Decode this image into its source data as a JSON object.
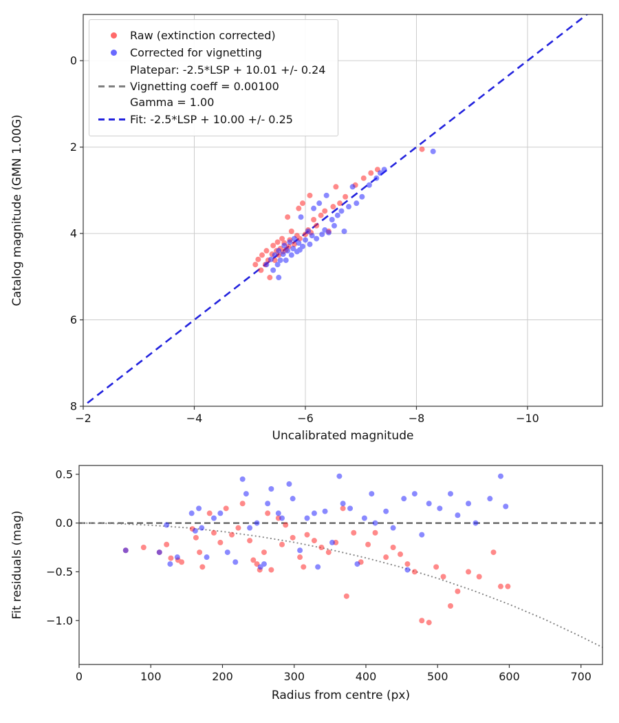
{
  "figure": {
    "background": "#ffffff"
  },
  "chart_data": [
    {
      "name": "calibration",
      "type": "scatter",
      "title": "",
      "xlabel": "Uncalibrated magnitude",
      "ylabel": "Catalog magnitude (GMN 1.00G)",
      "xlim": [
        -2,
        -11.35
      ],
      "ylim": [
        8,
        -1.07
      ],
      "xticks": [
        -2,
        -4,
        -6,
        -8,
        -10
      ],
      "yticks": [
        0,
        2,
        4,
        6,
        8
      ],
      "grid": true,
      "legend": {
        "position": "upper left",
        "entries": [
          {
            "marker": "dot",
            "color": "#ff2a2a",
            "label": "Raw (extinction corrected)"
          },
          {
            "marker": "dot",
            "color": "#2a2aff",
            "label": "Corrected for vignetting"
          },
          {
            "marker": "dash",
            "color": "#7f7f7f",
            "label": "Platepar: -2.5*LSP + 10.01 +/- 0.24\nVignetting coeff = 0.00100\nGamma = 1.00"
          },
          {
            "marker": "dash",
            "color": "#2222dd",
            "label": "Fit: -2.5*LSP + 10.00 +/- 0.25"
          }
        ]
      },
      "series": [
        {
          "id": "fit-line",
          "name": "Fit: -2.5*LSP + 10.00 +/- 0.25",
          "type": "line",
          "color": "#2222dd",
          "dash": "11,7",
          "width": 2.6,
          "points": [
            [
              -1.9,
              8.1
            ],
            [
              -11.35,
              -1.35
            ]
          ]
        },
        {
          "id": "raw-points",
          "name": "Raw (extinction corrected)",
          "type": "scatter",
          "color": "#ff2a2a",
          "opacity": 0.55,
          "size": 4,
          "points": [
            [
              -5.1,
              4.72
            ],
            [
              -5.15,
              4.6
            ],
            [
              -5.2,
              4.85
            ],
            [
              -5.22,
              4.5
            ],
            [
              -5.28,
              4.72
            ],
            [
              -5.3,
              4.4
            ],
            [
              -5.33,
              4.62
            ],
            [
              -5.36,
              5.02
            ],
            [
              -5.4,
              4.48
            ],
            [
              -5.42,
              4.28
            ],
            [
              -5.45,
              4.62
            ],
            [
              -5.48,
              4.4
            ],
            [
              -5.5,
              4.2
            ],
            [
              -5.52,
              4.5
            ],
            [
              -5.55,
              4.35
            ],
            [
              -5.58,
              4.12
            ],
            [
              -5.6,
              4.42
            ],
            [
              -5.62,
              4.22
            ],
            [
              -5.65,
              4.38
            ],
            [
              -5.68,
              3.62
            ],
            [
              -5.7,
              4.3
            ],
            [
              -5.72,
              4.15
            ],
            [
              -5.75,
              3.95
            ],
            [
              -5.8,
              4.25
            ],
            [
              -5.85,
              4.05
            ],
            [
              -5.88,
              3.42
            ],
            [
              -5.9,
              4.12
            ],
            [
              -5.95,
              3.3
            ],
            [
              -6.0,
              4.02
            ],
            [
              -6.05,
              3.92
            ],
            [
              -6.08,
              3.12
            ],
            [
              -6.1,
              3.98
            ],
            [
              -6.15,
              3.68
            ],
            [
              -6.2,
              3.82
            ],
            [
              -6.28,
              3.58
            ],
            [
              -6.35,
              3.48
            ],
            [
              -6.42,
              3.95
            ],
            [
              -6.5,
              3.38
            ],
            [
              -6.55,
              2.92
            ],
            [
              -6.62,
              3.3
            ],
            [
              -6.72,
              3.15
            ],
            [
              -6.9,
              2.88
            ],
            [
              -7.05,
              2.72
            ],
            [
              -7.18,
              2.6
            ],
            [
              -7.3,
              2.52
            ],
            [
              -8.1,
              2.05
            ]
          ]
        },
        {
          "id": "corrected-points",
          "name": "Corrected for vignetting",
          "type": "scatter",
          "color": "#2a2aff",
          "opacity": 0.55,
          "size": 4,
          "points": [
            [
              -5.3,
              4.72
            ],
            [
              -5.38,
              4.6
            ],
            [
              -5.42,
              4.85
            ],
            [
              -5.45,
              4.5
            ],
            [
              -5.5,
              4.72
            ],
            [
              -5.52,
              4.4
            ],
            [
              -5.55,
              4.62
            ],
            [
              -5.52,
              5.02
            ],
            [
              -5.6,
              4.48
            ],
            [
              -5.62,
              4.28
            ],
            [
              -5.65,
              4.62
            ],
            [
              -5.68,
              4.4
            ],
            [
              -5.72,
              4.2
            ],
            [
              -5.75,
              4.5
            ],
            [
              -5.78,
              4.35
            ],
            [
              -5.8,
              4.12
            ],
            [
              -5.85,
              4.42
            ],
            [
              -5.88,
              4.22
            ],
            [
              -5.9,
              4.38
            ],
            [
              -5.92,
              3.62
            ],
            [
              -5.95,
              4.3
            ],
            [
              -6.0,
              4.15
            ],
            [
              -6.05,
              3.95
            ],
            [
              -6.08,
              4.25
            ],
            [
              -6.12,
              4.05
            ],
            [
              -6.15,
              3.42
            ],
            [
              -6.2,
              4.12
            ],
            [
              -6.25,
              3.3
            ],
            [
              -6.3,
              4.02
            ],
            [
              -6.35,
              3.92
            ],
            [
              -6.38,
              3.12
            ],
            [
              -6.42,
              3.98
            ],
            [
              -6.48,
              3.68
            ],
            [
              -6.52,
              3.82
            ],
            [
              -6.58,
              3.58
            ],
            [
              -6.65,
              3.48
            ],
            [
              -6.7,
              3.95
            ],
            [
              -6.78,
              3.38
            ],
            [
              -6.85,
              2.92
            ],
            [
              -6.92,
              3.3
            ],
            [
              -7.02,
              3.15
            ],
            [
              -7.15,
              2.88
            ],
            [
              -7.28,
              2.72
            ],
            [
              -7.35,
              2.6
            ],
            [
              -7.42,
              2.52
            ],
            [
              -8.3,
              2.1
            ]
          ]
        }
      ]
    },
    {
      "name": "residuals",
      "type": "scatter",
      "title": "",
      "xlabel": "Radius from centre (px)",
      "ylabel": "Fit residuals (mag)",
      "xlim": [
        0,
        730
      ],
      "ylim": [
        -1.45,
        0.59
      ],
      "xticks": [
        0,
        100,
        200,
        300,
        400,
        500,
        600,
        700
      ],
      "yticks": [
        0.5,
        0.0,
        -0.5,
        -1.0
      ],
      "ydecimals": 1,
      "grid": false,
      "series": [
        {
          "id": "zero-line",
          "name": "zero residual",
          "type": "line",
          "color": "#444444",
          "dash": "9,5",
          "width": 2,
          "points": [
            [
              0,
              0
            ],
            [
              730,
              0
            ]
          ]
        },
        {
          "id": "vignetting-curve",
          "name": "vignetting model",
          "type": "line",
          "color": "#888888",
          "dash": "0.1,5.5",
          "width": 2.2,
          "linecap": "round",
          "points": [
            [
              0,
              0
            ],
            [
              50,
              -0.005
            ],
            [
              100,
              -0.022
            ],
            [
              150,
              -0.049
            ],
            [
              200,
              -0.087
            ],
            [
              250,
              -0.137
            ],
            [
              300,
              -0.198
            ],
            [
              350,
              -0.272
            ],
            [
              400,
              -0.357
            ],
            [
              450,
              -0.455
            ],
            [
              500,
              -0.567
            ],
            [
              550,
              -0.693
            ],
            [
              600,
              -0.834
            ],
            [
              650,
              -0.99
            ],
            [
              700,
              -1.164
            ],
            [
              730,
              -1.274
            ]
          ]
        },
        {
          "id": "raw-residuals",
          "name": "Raw residuals",
          "type": "scatter",
          "color": "#ff2a2a",
          "opacity": 0.55,
          "size": 4,
          "points": [
            [
              65,
              -0.28
            ],
            [
              90,
              -0.25
            ],
            [
              112,
              -0.3
            ],
            [
              122,
              -0.22
            ],
            [
              128,
              -0.36
            ],
            [
              138,
              -0.38
            ],
            [
              143,
              -0.4
            ],
            [
              158,
              -0.06
            ],
            [
              163,
              -0.15
            ],
            [
              168,
              -0.3
            ],
            [
              172,
              -0.45
            ],
            [
              182,
              0.1
            ],
            [
              188,
              -0.1
            ],
            [
              197,
              -0.2
            ],
            [
              205,
              0.15
            ],
            [
              213,
              -0.12
            ],
            [
              222,
              -0.05
            ],
            [
              228,
              0.2
            ],
            [
              238,
              -0.18
            ],
            [
              243,
              -0.38
            ],
            [
              248,
              -0.42
            ],
            [
              252,
              -0.48
            ],
            [
              258,
              -0.3
            ],
            [
              263,
              0.1
            ],
            [
              268,
              -0.48
            ],
            [
              278,
              0.05
            ],
            [
              283,
              -0.22
            ],
            [
              288,
              -0.02
            ],
            [
              298,
              -0.15
            ],
            [
              308,
              -0.35
            ],
            [
              313,
              -0.45
            ],
            [
              318,
              -0.12
            ],
            [
              328,
              -0.18
            ],
            [
              338,
              -0.25
            ],
            [
              348,
              -0.3
            ],
            [
              358,
              -0.2
            ],
            [
              368,
              0.15
            ],
            [
              373,
              -0.75
            ],
            [
              383,
              -0.1
            ],
            [
              393,
              -0.4
            ],
            [
              403,
              -0.22
            ],
            [
              413,
              -0.1
            ],
            [
              428,
              -0.35
            ],
            [
              438,
              -0.25
            ],
            [
              448,
              -0.32
            ],
            [
              458,
              -0.42
            ],
            [
              468,
              -0.5
            ],
            [
              478,
              -1.0
            ],
            [
              488,
              -1.02
            ],
            [
              498,
              -0.45
            ],
            [
              508,
              -0.55
            ],
            [
              518,
              -0.85
            ],
            [
              528,
              -0.7
            ],
            [
              543,
              -0.5
            ],
            [
              558,
              -0.55
            ],
            [
              578,
              -0.3
            ],
            [
              588,
              -0.65
            ],
            [
              598,
              -0.65
            ]
          ]
        },
        {
          "id": "corrected-residuals",
          "name": "Vignetting-corrected residuals",
          "type": "scatter",
          "color": "#2a2aff",
          "opacity": 0.55,
          "size": 4,
          "points": [
            [
              65,
              -0.28
            ],
            [
              112,
              -0.3
            ],
            [
              122,
              -0.02
            ],
            [
              127,
              -0.42
            ],
            [
              137,
              -0.35
            ],
            [
              157,
              0.1
            ],
            [
              162,
              -0.08
            ],
            [
              167,
              0.15
            ],
            [
              171,
              -0.05
            ],
            [
              178,
              -0.35
            ],
            [
              188,
              0.05
            ],
            [
              197,
              0.1
            ],
            [
              207,
              -0.3
            ],
            [
              218,
              -0.4
            ],
            [
              228,
              0.45
            ],
            [
              233,
              0.3
            ],
            [
              238,
              -0.05
            ],
            [
              248,
              0.0
            ],
            [
              253,
              -0.45
            ],
            [
              258,
              -0.42
            ],
            [
              263,
              0.2
            ],
            [
              268,
              0.35
            ],
            [
              278,
              0.1
            ],
            [
              283,
              0.05
            ],
            [
              293,
              0.4
            ],
            [
              298,
              0.25
            ],
            [
              308,
              -0.28
            ],
            [
              318,
              0.05
            ],
            [
              328,
              0.1
            ],
            [
              333,
              -0.45
            ],
            [
              343,
              0.12
            ],
            [
              353,
              -0.2
            ],
            [
              363,
              0.48
            ],
            [
              368,
              0.2
            ],
            [
              378,
              0.15
            ],
            [
              388,
              -0.42
            ],
            [
              398,
              0.05
            ],
            [
              408,
              0.3
            ],
            [
              413,
              0.0
            ],
            [
              428,
              0.12
            ],
            [
              438,
              -0.05
            ],
            [
              453,
              0.25
            ],
            [
              458,
              -0.48
            ],
            [
              468,
              0.3
            ],
            [
              478,
              -0.12
            ],
            [
              488,
              0.2
            ],
            [
              503,
              0.15
            ],
            [
              518,
              0.3
            ],
            [
              528,
              0.08
            ],
            [
              543,
              0.2
            ],
            [
              553,
              0.0
            ],
            [
              573,
              0.25
            ],
            [
              588,
              0.48
            ],
            [
              595,
              0.17
            ]
          ]
        }
      ]
    }
  ]
}
